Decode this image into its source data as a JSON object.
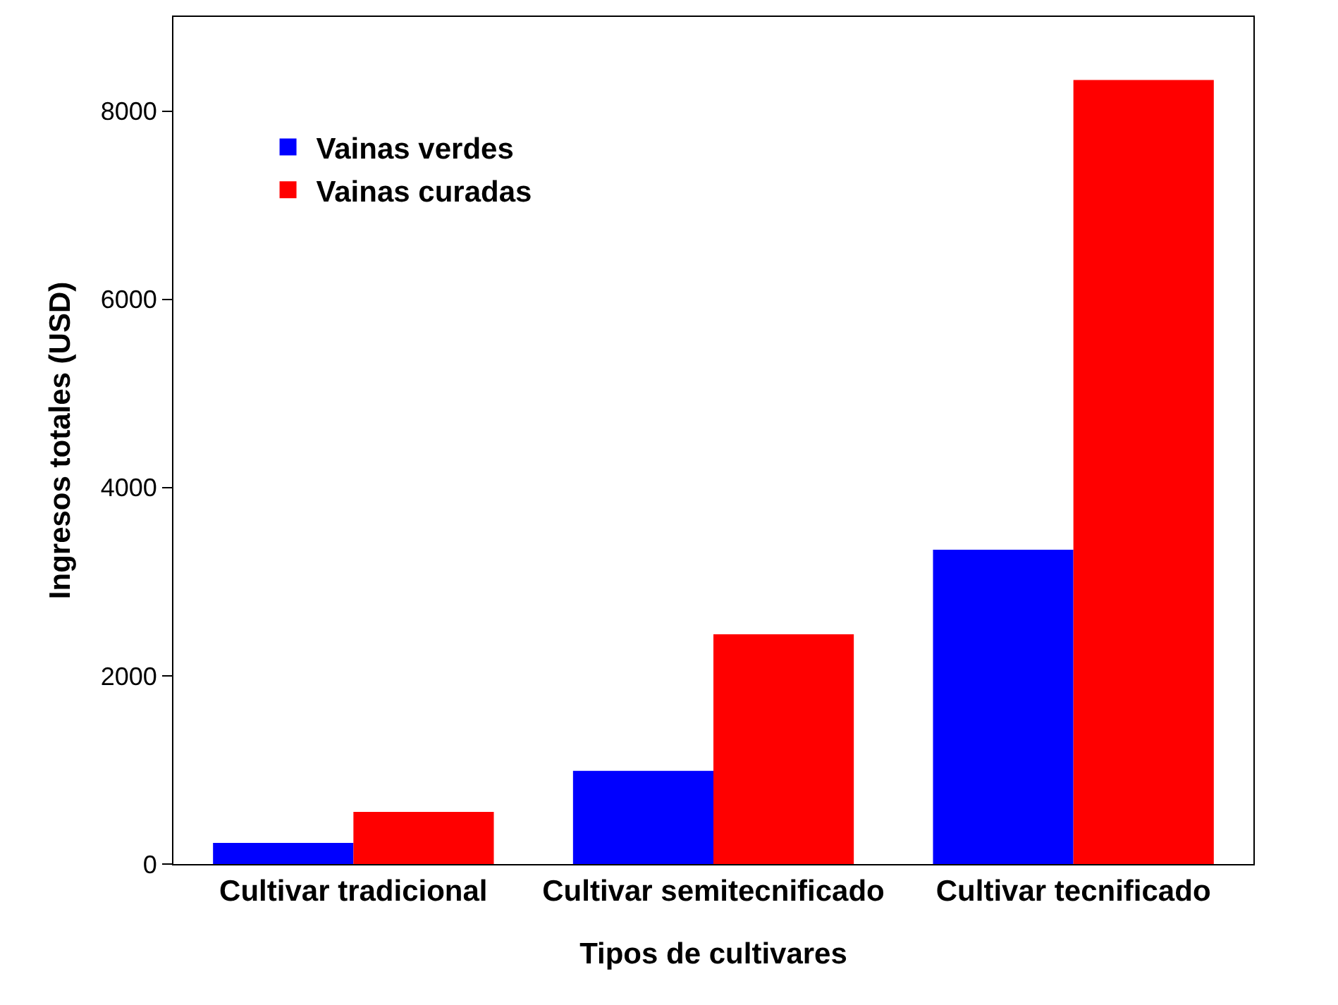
{
  "chart_data": {
    "type": "bar",
    "xlabel": "Tipos de cultivares",
    "ylabel": "Ingresos totales (USD)",
    "categories": [
      "Cultivar tradicional",
      "Cultivar semitecnificado",
      "Cultivar tecnificado"
    ],
    "series": [
      {
        "name": "Vainas verdes",
        "color": "#0000ff",
        "values": [
          225,
          990,
          3340
        ]
      },
      {
        "name": "Vainas curadas",
        "color": "#ff0000",
        "values": [
          555,
          2440,
          8330
        ]
      }
    ],
    "ylim": [
      0,
      9000
    ],
    "yticks": [
      0,
      2000,
      4000,
      6000,
      8000
    ],
    "grid": false,
    "legend": "top left"
  }
}
